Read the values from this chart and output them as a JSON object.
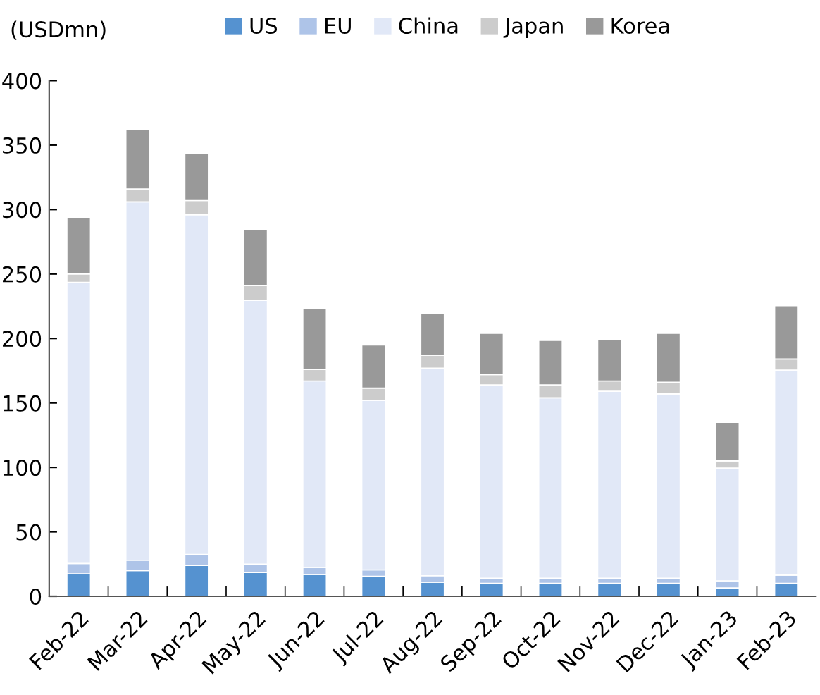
{
  "chart_data": {
    "type": "bar",
    "stacked": true,
    "ylabel": "(USDmn)",
    "categories": [
      "Feb-22",
      "Mar-22",
      "Apr-22",
      "May-22",
      "Jun-22",
      "Jul-22",
      "Aug-22",
      "Sep-22",
      "Oct-22",
      "Nov-22",
      "Dec-22",
      "Jan-23",
      "Feb-23"
    ],
    "series": [
      {
        "name": "US",
        "color": "#5592d0",
        "values": [
          17.5,
          20,
          24,
          18.5,
          17,
          15.5,
          11,
          10,
          10,
          10,
          10,
          6.5,
          10
        ]
      },
      {
        "name": "EU",
        "color": "#aec4e8",
        "values": [
          8,
          8,
          8.5,
          6.5,
          5.5,
          5,
          5,
          4,
          4,
          4,
          4,
          5.5,
          6.5
        ]
      },
      {
        "name": "China",
        "color": "#e1e8f7",
        "values": [
          218,
          278,
          263.5,
          204.5,
          144.5,
          131.5,
          161,
          150,
          140,
          145,
          143,
          87.5,
          159
        ]
      },
      {
        "name": "Japan",
        "color": "#cccccc",
        "values": [
          6.5,
          10,
          11,
          11.5,
          9,
          9.5,
          10,
          8,
          10,
          8,
          9,
          5.5,
          8.5
        ]
      },
      {
        "name": "Korea",
        "color": "#999999",
        "values": [
          44,
          46,
          36.5,
          43.5,
          47,
          33.5,
          32.5,
          32,
          34.5,
          32,
          38,
          30,
          41.5
        ]
      }
    ],
    "ylim": [
      0,
      400
    ],
    "yticks": [
      0,
      50,
      100,
      150,
      200,
      250,
      300,
      350,
      400
    ],
    "grid": false,
    "legend": "top"
  }
}
